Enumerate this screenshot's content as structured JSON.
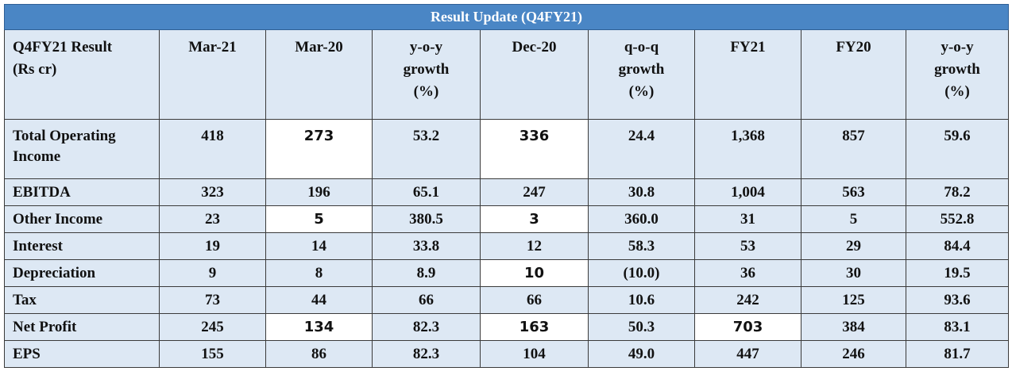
{
  "title": "Result Update (Q4FY21)",
  "columns": [
    "Q4FY21 Result (Rs cr)",
    "Mar-21",
    "Mar-20",
    "y-o-y growth (%)",
    "Dec-20",
    "q-o-q growth (%)",
    "FY21",
    "FY20",
    "y-o-y growth (%)"
  ],
  "column_lines": [
    [
      "Q4FY21 Result",
      "(Rs cr)"
    ],
    [
      "Mar-21"
    ],
    [
      "Mar-20"
    ],
    [
      "y-o-y",
      "growth",
      "(%)"
    ],
    [
      "Dec-20"
    ],
    [
      "q-o-q",
      "growth",
      "(%)"
    ],
    [
      "FY21"
    ],
    [
      "FY20"
    ],
    [
      "y-o-y",
      "growth",
      "(%)"
    ]
  ],
  "rows": [
    {
      "label": "Total Operating Income",
      "label_lines": [
        "Total Operating",
        "Income"
      ],
      "values": [
        "418",
        "273",
        "53.2",
        "336",
        "24.4",
        "1,368",
        "857",
        "59.6"
      ]
    },
    {
      "label": "EBITDA",
      "values": [
        "323",
        "196",
        "65.1",
        "247",
        "30.8",
        "1,004",
        "563",
        "78.2"
      ]
    },
    {
      "label": "Other Income",
      "values": [
        "23",
        "5",
        "380.5",
        "3",
        "360.0",
        "31",
        "5",
        "552.8"
      ]
    },
    {
      "label": "Interest",
      "values": [
        "19",
        "14",
        "33.8",
        "12",
        "58.3",
        "53",
        "29",
        "84.4"
      ]
    },
    {
      "label": "Depreciation",
      "values": [
        "9",
        "8",
        "8.9",
        "10",
        "(10.0)",
        "36",
        "30",
        "19.5"
      ]
    },
    {
      "label": "Tax",
      "values": [
        "73",
        "44",
        "66",
        "66",
        "10.6",
        "242",
        "125",
        "93.6"
      ]
    },
    {
      "label": "Net Profit",
      "values": [
        "245",
        "134",
        "82.3",
        "163",
        "50.3",
        "703",
        "384",
        "83.1"
      ]
    },
    {
      "label": "EPS",
      "values": [
        "155",
        "86",
        "82.3",
        "104",
        "49.0",
        "447",
        "246",
        "81.7"
      ]
    }
  ],
  "colors": {
    "title_bg": "#4a86c5",
    "row_bg": "#dde8f4",
    "border": "#3a3a3a"
  }
}
